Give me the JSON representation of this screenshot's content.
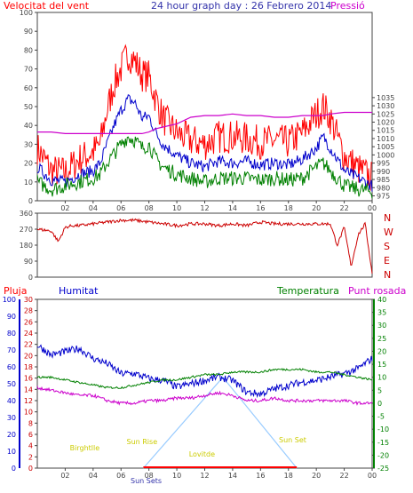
{
  "colors": {
    "wind": "#ff0000",
    "gust": "#ff0000",
    "avg_wind": "#0000cc",
    "speed_low": "#008000",
    "pressure": "#cc00cc",
    "direction": "#cc0000",
    "rain": "#ff0000",
    "humidity": "#0000cc",
    "temperature": "#008000",
    "dewpoint": "#cc00cc",
    "solar": "#99ccff",
    "annot": "#cccc00",
    "axis_left_top": "#ff0000",
    "axis_right_top": "#cc00cc",
    "axis_left_bottom_rain": "#ff0000",
    "axis_left_bottom_hum": "#0000cc",
    "axis_right_bottom": "#008000"
  },
  "header": {
    "left": "Velocitat del vent",
    "center": "24 hour graph day : 26 Febrero 2014",
    "right": "Pressió"
  },
  "bottom_header": {
    "rain": "Pluja",
    "humidity": "Humitat",
    "temperature": "Temperatura",
    "dewpoint": "Punt rosada"
  },
  "compass": [
    "N",
    "W",
    "S",
    "E",
    "N"
  ],
  "chart_data": [
    {
      "type": "line",
      "title": "24 hour graph day : 26 Febrero 2014",
      "ylabel_left": "Velocitat del vent",
      "ylabel_right": "Pressió",
      "x_ticks": [
        "02",
        "04",
        "06",
        "08",
        "10",
        "12",
        "14",
        "16",
        "18",
        "20",
        "22",
        "00"
      ],
      "ylim_left": [
        0,
        100
      ],
      "y_ticks_left": [
        0,
        10,
        20,
        30,
        40,
        50,
        60,
        70,
        80,
        90,
        100
      ],
      "ylim_right": [
        972,
        1087
      ],
      "y_ticks_right": [
        975,
        980,
        985,
        990,
        995,
        1000,
        1005,
        1010,
        1015,
        1020,
        1025,
        1030,
        1035
      ],
      "x_hours": [
        0,
        1,
        2,
        3,
        4,
        4.5,
        5,
        5.5,
        6,
        6.5,
        7,
        7.5,
        8,
        8.5,
        9,
        10,
        11,
        12,
        13,
        14,
        15,
        16,
        17,
        18,
        19,
        20,
        20.5,
        21,
        22,
        23,
        24
      ],
      "series": [
        {
          "axis": "left",
          "values": [
            28,
            16,
            15,
            22,
            26,
            30,
            48,
            62,
            70,
            78,
            74,
            67,
            66,
            54,
            44,
            36,
            32,
            30,
            34,
            34,
            33,
            31,
            32,
            31,
            36,
            46,
            50,
            44,
            24,
            17,
            12
          ]
        },
        {
          "axis": "left",
          "values": [
            18,
            11,
            10,
            14,
            16,
            20,
            30,
            40,
            48,
            54,
            52,
            44,
            45,
            36,
            30,
            24,
            20,
            18,
            21,
            20,
            21,
            19,
            20,
            19,
            22,
            28,
            34,
            28,
            16,
            12,
            8
          ]
        },
        {
          "axis": "left",
          "values": [
            10,
            6,
            8,
            10,
            12,
            14,
            20,
            25,
            30,
            34,
            32,
            28,
            30,
            22,
            18,
            14,
            12,
            10,
            12,
            12,
            12,
            11,
            12,
            11,
            12,
            18,
            20,
            16,
            8,
            6,
            5
          ]
        },
        {
          "axis": "right",
          "values": [
            1014,
            1014,
            1013,
            1013,
            1013,
            1013,
            1013,
            1013,
            1013,
            1013,
            1013,
            1013,
            1014,
            1016,
            1017,
            1019,
            1023,
            1024,
            1024,
            1025,
            1024,
            1024,
            1023,
            1023,
            1024,
            1024,
            1024,
            1025,
            1026,
            1026,
            1026
          ]
        }
      ]
    },
    {
      "type": "line",
      "y_ticks": [
        0,
        90,
        180,
        270,
        360
      ],
      "ylim": [
        0,
        360
      ],
      "x_hours": [
        0,
        1,
        1.5,
        2,
        2.5,
        3,
        4,
        5,
        6,
        7,
        8,
        9,
        10,
        11,
        12,
        13,
        14,
        15,
        16,
        17,
        18,
        19,
        20,
        21,
        21.5,
        22,
        22.5,
        23,
        23.5,
        24
      ],
      "values": [
        270,
        260,
        200,
        280,
        290,
        290,
        300,
        310,
        320,
        320,
        310,
        300,
        290,
        300,
        300,
        290,
        300,
        290,
        310,
        300,
        300,
        300,
        300,
        300,
        180,
        280,
        60,
        240,
        300,
        20
      ]
    },
    {
      "type": "line",
      "x_ticks": [
        "02",
        "04",
        "06",
        "08",
        "10",
        "12",
        "14",
        "16",
        "18",
        "20",
        "22",
        "00"
      ],
      "ylim_rain": [
        0,
        100
      ],
      "y_ticks_rain": [
        0,
        10,
        20,
        30,
        40,
        50,
        60,
        70,
        80,
        90,
        100
      ],
      "ylim_humidity": [
        0,
        30
      ],
      "y_ticks_humidity": [
        0,
        2,
        4,
        6,
        8,
        10,
        12,
        14,
        16,
        18,
        20,
        22,
        24,
        26,
        28,
        30
      ],
      "ylim_temp": [
        -25,
        40
      ],
      "y_ticks_temp": [
        -25,
        -20,
        -15,
        -10,
        -5,
        0,
        5,
        10,
        15,
        20,
        25,
        30,
        35,
        40
      ],
      "x_hours": [
        0,
        1,
        2,
        3,
        4,
        5,
        6,
        7,
        8,
        9,
        10,
        11,
        12,
        13,
        14,
        15,
        16,
        17,
        18,
        19,
        20,
        21,
        22,
        23,
        24
      ],
      "series": [
        {
          "name": "Humitat",
          "values": [
            73,
            67,
            69,
            71,
            65,
            62,
            56,
            56,
            53,
            52,
            48,
            50,
            52,
            54,
            52,
            45,
            44,
            47,
            49,
            51,
            52,
            54,
            56,
            59,
            65
          ]
        },
        {
          "name": "Temperatura",
          "values": [
            10,
            10,
            9,
            8,
            7,
            6,
            6,
            7,
            8,
            9,
            9,
            10,
            11,
            11,
            12,
            12,
            12,
            13,
            13,
            13,
            12,
            12,
            11,
            10,
            9
          ]
        },
        {
          "name": "Punt rosada",
          "values": [
            6,
            5,
            4,
            3,
            3,
            1,
            0,
            0,
            1,
            1,
            2,
            2,
            3,
            4,
            3,
            1,
            1,
            2,
            1,
            1,
            1,
            1,
            1,
            0,
            0
          ]
        }
      ],
      "annotations": [
        "Birghtlle",
        "Sun Rise",
        "Lovitde",
        "Sun Set",
        "Sun Sets"
      ]
    }
  ]
}
